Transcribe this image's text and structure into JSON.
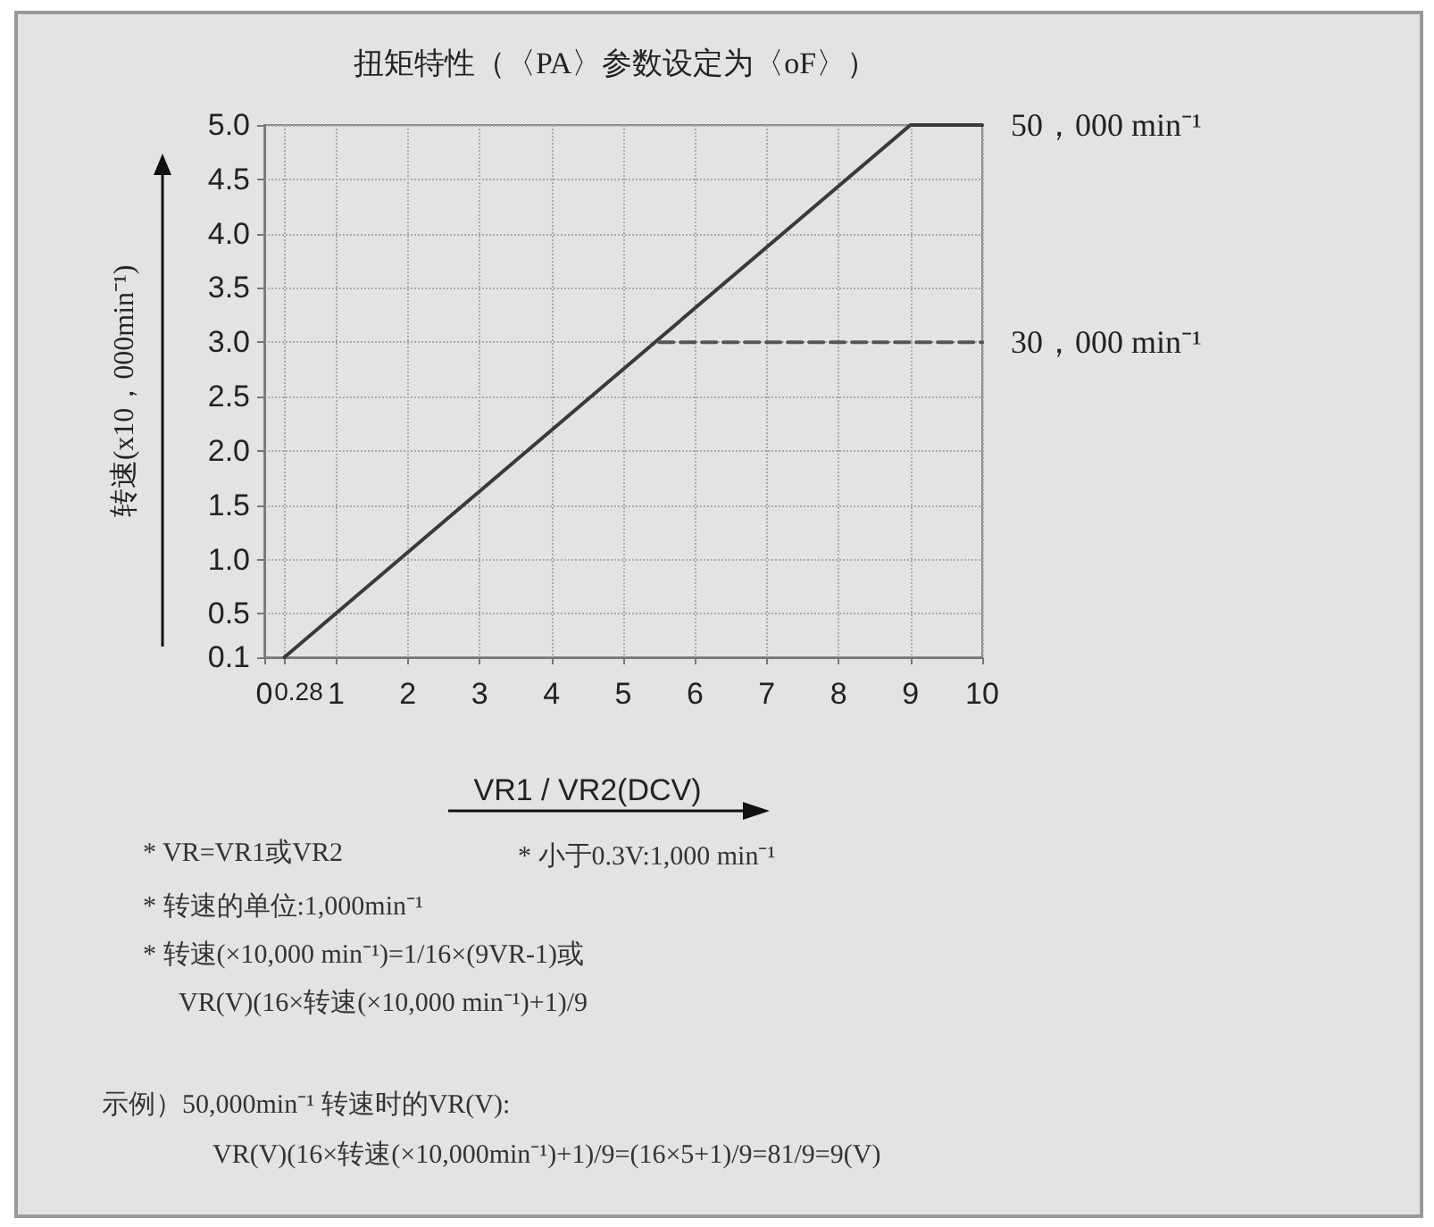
{
  "chart_data": {
    "type": "line",
    "title": "扭矩特性（〈PA〉参数设定为〈oF〉）",
    "xlabel": "VR1 / VR2(DCV)",
    "ylabel": "转速(x10，000min⁻¹)",
    "series": [
      {
        "x": [
          0.28,
          9,
          10
        ],
        "values": [
          0.1,
          5.0,
          5.0
        ],
        "color": "#3a3a3a",
        "line_style": "solid"
      },
      {
        "x": [
          5.5,
          10
        ],
        "values": [
          3.0,
          3.0
        ],
        "color": "#555555",
        "line_style": "dashed"
      }
    ],
    "xlim": [
      0,
      10
    ],
    "xticks": [
      0,
      0.28,
      1,
      2,
      3,
      4,
      5,
      6,
      7,
      8,
      9,
      10
    ],
    "ylim": [
      0.1,
      5.0
    ],
    "yticks": [
      0.1,
      0.5,
      {
        "value": 1,
        "label": "1.0"
      },
      1.5,
      {
        "value": 2,
        "label": "2.0"
      },
      2.5,
      {
        "value": 3,
        "label": "3.0"
      },
      3.5,
      {
        "value": 4,
        "label": "4.0"
      },
      4.5,
      {
        "value": 5,
        "label": "5.0"
      }
    ],
    "grid": true,
    "marker": "none",
    "annotations": [
      {
        "text": "50，000 min⁻¹",
        "x": 10,
        "y": 5.0
      },
      {
        "text": "30，000 min⁻¹",
        "x": 10,
        "y": 3.0
      },
      "* VR=VR1或VR2",
      "* 小于0.3V:1,000 min⁻¹",
      "* 转速的单位:1,000min⁻¹",
      "* 转速(×10,000 min⁻¹)=1/16×(9VR-1)或",
      "VR(V)(16×转速(×10,000 min⁻¹)+1)/9",
      "示例）50,000min⁻¹ 转速时的VR(V):",
      "VR(V)(16×转速(×10,000min⁻¹)+1)/9=(16×5+1)/9=81/9=9(V)"
    ]
  }
}
